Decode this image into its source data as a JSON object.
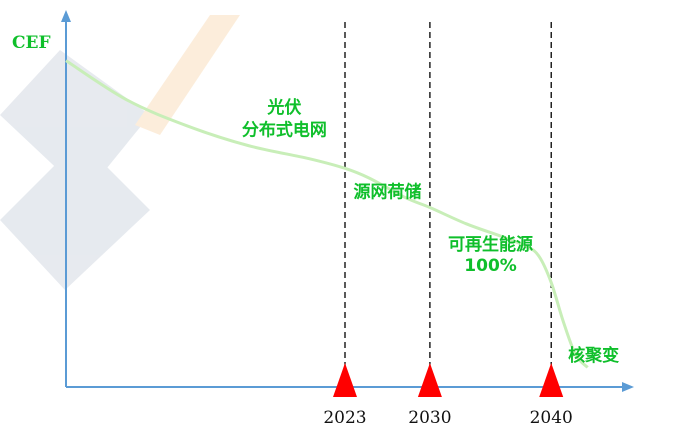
{
  "chart_data": {
    "type": "line",
    "ylabel": "CEF",
    "xlabel": "",
    "years": [
      "2023",
      "2030",
      "2040"
    ],
    "stage_labels": [
      {
        "text": "光伏",
        "x": 2018,
        "y": 0.84
      },
      {
        "text": "分布式电网",
        "x": 2018,
        "y": 0.77
      },
      {
        "text": "源网荷储",
        "x": 2026.5,
        "y": 0.58
      },
      {
        "text": "可再生能源",
        "x": 2035,
        "y": 0.42
      },
      {
        "text": "100%",
        "x": 2035,
        "y": 0.355
      },
      {
        "text": "核聚变",
        "x": 2043.5,
        "y": 0.08
      }
    ],
    "curve": {
      "x": [
        2000,
        2005,
        2010,
        2015,
        2020,
        2023,
        2025,
        2028,
        2030,
        2033,
        2036,
        2038,
        2039,
        2040,
        2041,
        2042,
        2043
      ],
      "y": [
        1.0,
        0.88,
        0.8,
        0.74,
        0.7,
        0.67,
        0.64,
        0.58,
        0.55,
        0.5,
        0.46,
        0.43,
        0.4,
        0.32,
        0.2,
        0.1,
        0.06
      ]
    },
    "xlim": [
      2000,
      2046
    ],
    "ylim": [
      0,
      1.1
    ],
    "colors": {
      "curve": "#c8eeb8",
      "label": "#0fbf2b",
      "axis": "#5b9bd5",
      "marker": "#ff0000",
      "divider": "#000000"
    }
  }
}
